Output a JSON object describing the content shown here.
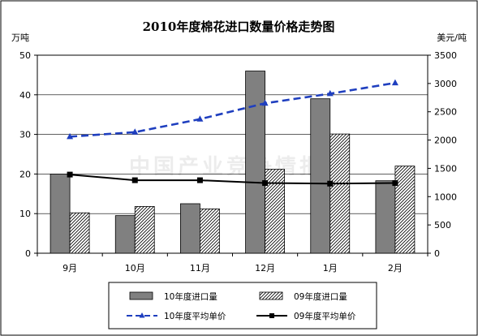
{
  "chart_data": {
    "type": "bar",
    "title": "2010年度棉花进口数量价格走势图",
    "categories": [
      "9月",
      "10月",
      "11月",
      "12月",
      "1月",
      "2月"
    ],
    "left_axis": {
      "label": "万吨",
      "range": [
        0,
        50
      ],
      "ticks": [
        0,
        10,
        20,
        30,
        40,
        50
      ]
    },
    "right_axis": {
      "label": "美元/吨",
      "range": [
        0,
        3500
      ],
      "ticks": [
        0,
        500,
        1000,
        1500,
        2000,
        2500,
        3000,
        3500
      ]
    },
    "series": [
      {
        "name": "10年度进口量",
        "type": "bar",
        "axis": "left",
        "color": "#808080",
        "values": [
          20,
          9.5,
          12.5,
          46,
          39,
          18.3
        ]
      },
      {
        "name": "09年度进口量",
        "type": "bar",
        "axis": "left",
        "pattern": "diagonal-hatch",
        "values": [
          10.2,
          11.8,
          11.2,
          21.2,
          30.1,
          22
        ]
      },
      {
        "name": "10年度平均单价",
        "type": "line",
        "axis": "right",
        "color": "#1f3fbf",
        "style": "dashed",
        "marker": "triangle",
        "values": [
          2060,
          2140,
          2370,
          2650,
          2820,
          3010
        ]
      },
      {
        "name": "09年度平均单价",
        "type": "line",
        "axis": "right",
        "color": "#000000",
        "style": "solid",
        "marker": "square",
        "values": [
          1390,
          1290,
          1290,
          1240,
          1230,
          1240
        ]
      }
    ],
    "grid": true,
    "legend_position": "bottom"
  },
  "watermark": "中国产业竞争情报网"
}
